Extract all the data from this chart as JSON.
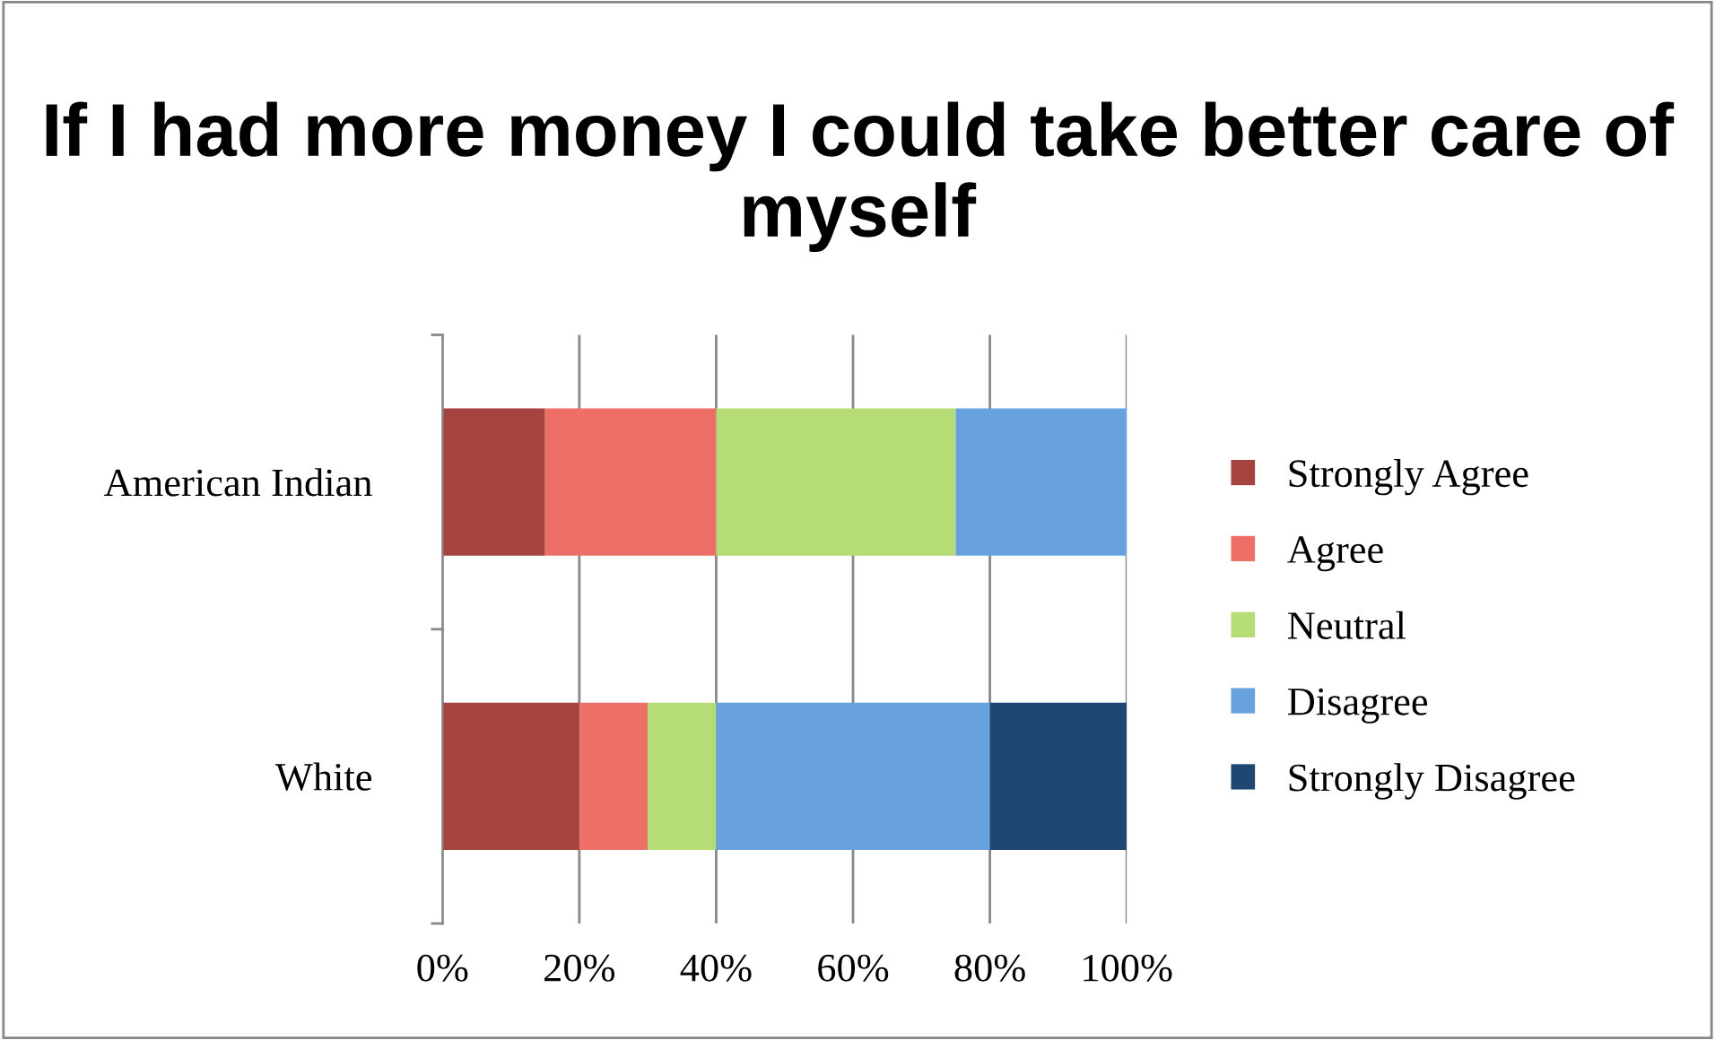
{
  "chart_data": {
    "type": "bar",
    "orientation": "horizontal",
    "stacked": true,
    "title": "If I had more money I could take better care of myself",
    "categories": [
      "American Indian",
      "White"
    ],
    "series": [
      {
        "name": "Strongly Agree",
        "color": "#a5443f",
        "values": [
          15,
          20
        ]
      },
      {
        "name": "Agree",
        "color": "#ee6e68",
        "values": [
          25,
          10
        ]
      },
      {
        "name": "Neutral",
        "color": "#b6dc78",
        "values": [
          35,
          10
        ]
      },
      {
        "name": "Disagree",
        "color": "#67a2df",
        "values": [
          25,
          40
        ]
      },
      {
        "name": "Strongly Disagree",
        "color": "#1f4771",
        "values": [
          0,
          20
        ]
      }
    ],
    "xlim": [
      0,
      100
    ],
    "xticks": [
      {
        "value": 0,
        "label": "0%"
      },
      {
        "value": 20,
        "label": "20%"
      },
      {
        "value": 40,
        "label": "40%"
      },
      {
        "value": 60,
        "label": "60%"
      },
      {
        "value": 80,
        "label": "80%"
      },
      {
        "value": 100,
        "label": "100%"
      }
    ],
    "grid": "x",
    "legend": "right"
  }
}
